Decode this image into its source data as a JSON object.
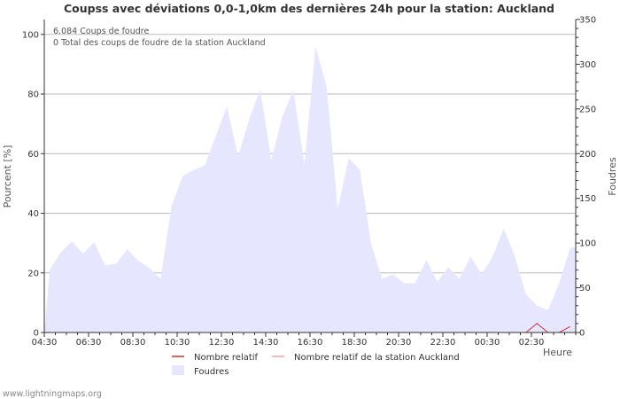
{
  "chart_data": {
    "type": "area",
    "title": "Coupss avec déviations 0,0-1,0km des dernières 24h pour la station: Auckland",
    "ylabel_left": "Pourcent   [%]",
    "ylabel_right": "Foudres",
    "xlabel": "Heure",
    "info_lines": [
      "6.084  Coups de foudre",
      "0 Total des coups de foudre de la station Auckland"
    ],
    "x_ticks": [
      "04:30",
      "06:30",
      "08:30",
      "10:30",
      "12:30",
      "14:30",
      "16:30",
      "18:30",
      "20:30",
      "22:30",
      "00:30",
      "02:30"
    ],
    "y_left": {
      "min": 0,
      "max": 105,
      "ticks": [
        0,
        20,
        40,
        60,
        80,
        100
      ]
    },
    "y_right": {
      "min": 0,
      "max": 350,
      "ticks": [
        0,
        50,
        100,
        150,
        200,
        250,
        300,
        350
      ]
    },
    "grid": true,
    "legend": [
      {
        "name": "Nombre relatif",
        "type": "line",
        "color": "#cc3333"
      },
      {
        "name": "Nombre relatif de la station Auckland",
        "type": "line",
        "color": "#f0a0a0"
      },
      {
        "name": "Foudres",
        "type": "area",
        "color": "#e6e6ff"
      }
    ],
    "series": [
      {
        "name": "Foudres",
        "axis": "right",
        "values": [
          70,
          90,
          102,
          88,
          101,
          75,
          77,
          93,
          80,
          72,
          60,
          142,
          175,
          182,
          187,
          220,
          253,
          197,
          238,
          272,
          193,
          241,
          271,
          187,
          320,
          275,
          138,
          195,
          182,
          100,
          60,
          65,
          55,
          55,
          81,
          57,
          73,
          60,
          85,
          65,
          85,
          116,
          85,
          43,
          30,
          25,
          55,
          95
        ]
      },
      {
        "name": "Nombre relatif",
        "axis": "left",
        "values": [
          0,
          0,
          0,
          0,
          0,
          0,
          0,
          0,
          0,
          0,
          0,
          0,
          0,
          0,
          0,
          0,
          0,
          0,
          0,
          0,
          0,
          0,
          0,
          0,
          0,
          0,
          0,
          0,
          0,
          0,
          0,
          0,
          0,
          0,
          0,
          0,
          0,
          0,
          0,
          0,
          0,
          0,
          0,
          0,
          3,
          0,
          0,
          2
        ]
      },
      {
        "name": "Nombre relatif de la station Auckland",
        "axis": "left",
        "values": [
          0,
          0,
          0,
          0,
          0,
          0,
          0,
          0,
          0,
          0,
          0,
          0,
          0,
          0,
          0,
          0,
          0,
          0,
          0,
          0,
          0,
          0,
          0,
          0,
          0,
          0,
          0,
          0,
          0,
          0,
          0,
          0,
          0,
          0,
          0,
          0,
          0,
          0,
          0,
          0,
          0,
          0,
          0,
          0,
          0,
          0,
          0,
          0
        ]
      }
    ]
  },
  "footer": "www.lightningmaps.org",
  "colors": {
    "grid": "#bbbbbb",
    "axis": "#333333",
    "area": "#e6e6ff"
  }
}
